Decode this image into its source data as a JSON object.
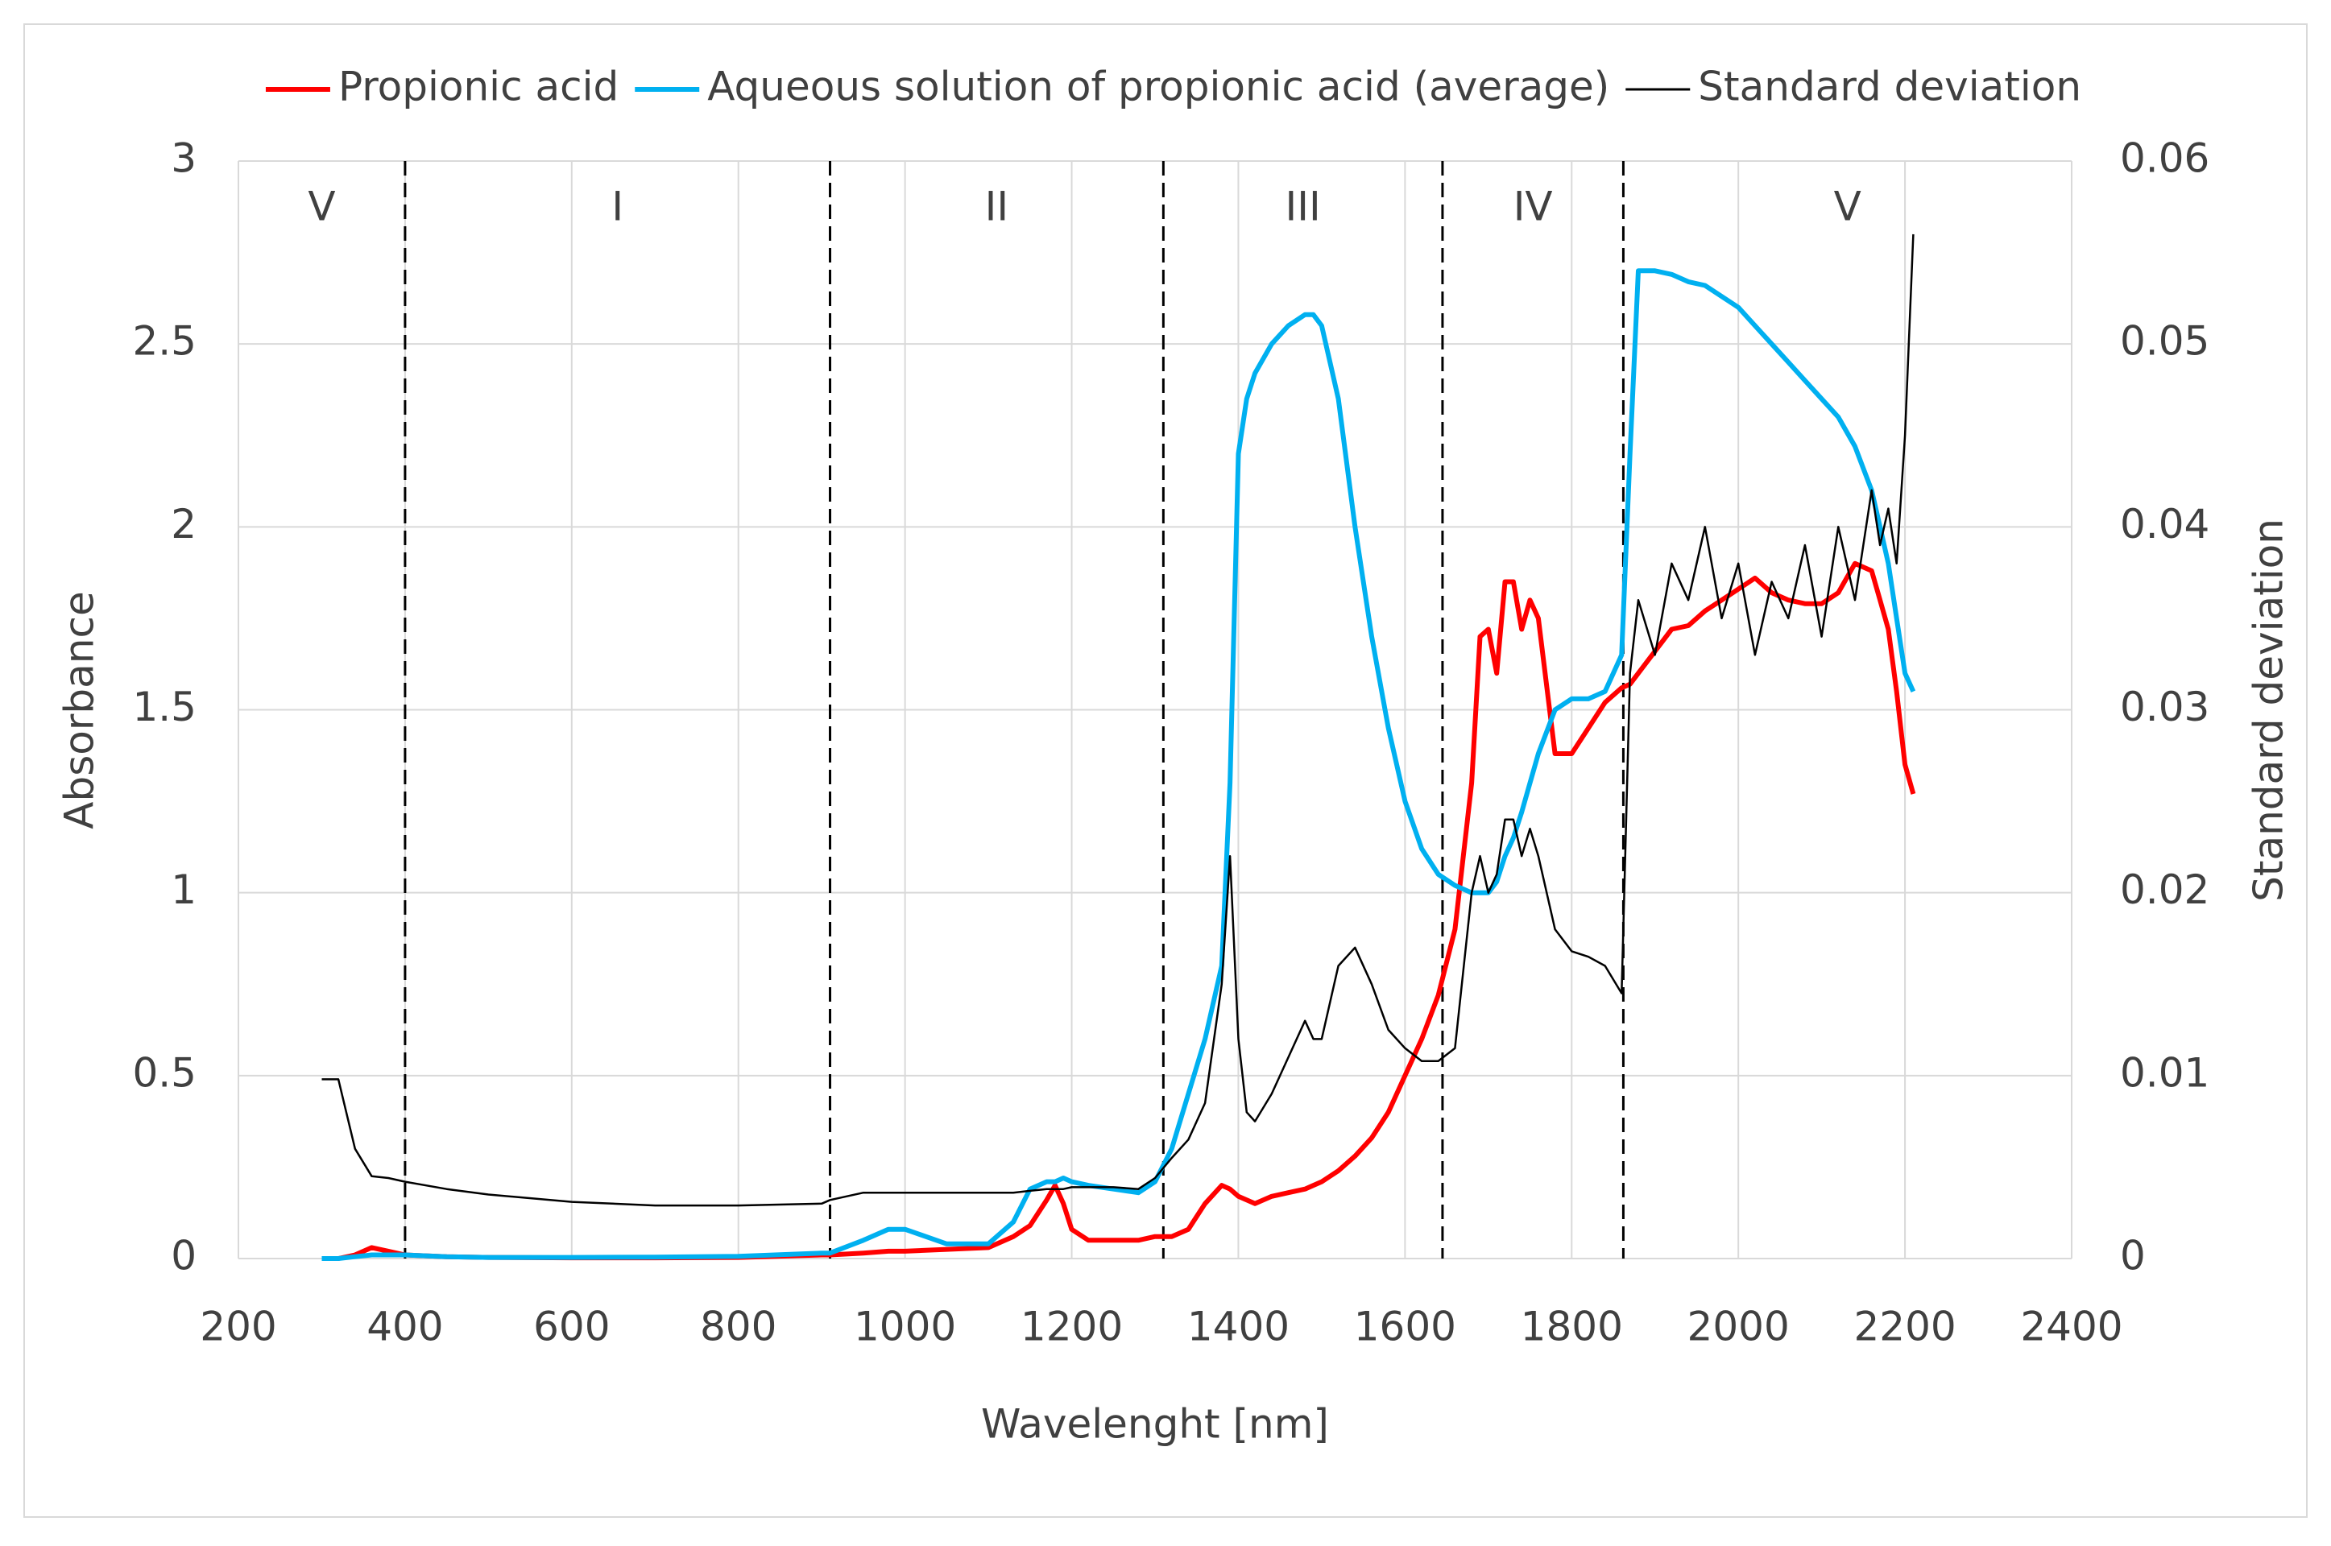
{
  "chart_data": {
    "type": "line",
    "x_label": "Wavelenght [nm]",
    "y_label": "Absorbance",
    "y2_label": "Standard deviation",
    "xlim": [
      200,
      2400
    ],
    "xticks": [
      200,
      400,
      600,
      800,
      1000,
      1200,
      1400,
      1600,
      1800,
      2000,
      2200,
      2400
    ],
    "ylim": [
      0,
      3
    ],
    "yticks": [
      0,
      0.5,
      1,
      1.5,
      2,
      2.5,
      3
    ],
    "y2lim": [
      0,
      0.06
    ],
    "y2ticks": [
      0,
      0.01,
      0.02,
      0.03,
      0.04,
      0.05,
      0.06
    ],
    "grid": true,
    "legend": "top",
    "boundaries": [
      400,
      910,
      1310,
      1645,
      1862
    ],
    "regions": [
      "V",
      "I",
      "II",
      "III",
      "IV",
      "V"
    ],
    "x": [
      300,
      320,
      340,
      360,
      380,
      400,
      450,
      500,
      600,
      700,
      800,
      900,
      910,
      950,
      980,
      1000,
      1050,
      1100,
      1130,
      1150,
      1170,
      1180,
      1190,
      1200,
      1220,
      1250,
      1280,
      1300,
      1320,
      1340,
      1360,
      1380,
      1390,
      1400,
      1410,
      1420,
      1440,
      1460,
      1480,
      1490,
      1500,
      1520,
      1540,
      1560,
      1580,
      1600,
      1620,
      1640,
      1660,
      1680,
      1690,
      1700,
      1710,
      1720,
      1730,
      1740,
      1750,
      1760,
      1780,
      1800,
      1820,
      1840,
      1860,
      1870,
      1880,
      1900,
      1920,
      1940,
      1960,
      1980,
      2000,
      2020,
      2040,
      2060,
      2080,
      2100,
      2120,
      2140,
      2160,
      2170,
      2180,
      2190,
      2200,
      2210
    ],
    "series": [
      {
        "name": "Propionic acid",
        "color": "#ff0000",
        "values": [
          0,
          0,
          0.01,
          0.03,
          0.02,
          0.01,
          0.005,
          0.003,
          0.002,
          0.002,
          0.003,
          0.01,
          0.01,
          0.015,
          0.02,
          0.02,
          0.025,
          0.03,
          0.06,
          0.09,
          0.16,
          0.2,
          0.15,
          0.08,
          0.05,
          0.05,
          0.05,
          0.06,
          0.06,
          0.08,
          0.15,
          0.2,
          0.19,
          0.17,
          0.16,
          0.15,
          0.17,
          0.18,
          0.19,
          0.2,
          0.21,
          0.24,
          0.28,
          0.33,
          0.4,
          0.5,
          0.6,
          0.72,
          0.9,
          1.3,
          1.7,
          1.72,
          1.6,
          1.85,
          1.85,
          1.72,
          1.8,
          1.75,
          1.38,
          1.38,
          1.45,
          1.52,
          1.56,
          1.57,
          1.6,
          1.66,
          1.72,
          1.73,
          1.77,
          1.8,
          1.83,
          1.86,
          1.82,
          1.8,
          1.79,
          1.79,
          1.82,
          1.9,
          1.88,
          1.8,
          1.72,
          1.55,
          1.35,
          1.27
        ]
      },
      {
        "name": "Aqueous solution of propionic acid (average)",
        "color": "#00b0f0",
        "values": [
          0,
          0,
          0.005,
          0.01,
          0.01,
          0.01,
          0.005,
          0.003,
          0.003,
          0.004,
          0.006,
          0.015,
          0.015,
          0.05,
          0.08,
          0.08,
          0.04,
          0.04,
          0.1,
          0.19,
          0.21,
          0.21,
          0.22,
          0.21,
          0.2,
          0.19,
          0.18,
          0.21,
          0.3,
          0.45,
          0.6,
          0.8,
          1.3,
          2.2,
          2.35,
          2.42,
          2.5,
          2.55,
          2.58,
          2.58,
          2.55,
          2.35,
          2.0,
          1.7,
          1.45,
          1.25,
          1.12,
          1.05,
          1.02,
          1.0,
          1.0,
          1.0,
          1.03,
          1.1,
          1.15,
          1.22,
          1.3,
          1.38,
          1.5,
          1.53,
          1.53,
          1.55,
          1.65,
          2.2,
          2.7,
          2.7,
          2.69,
          2.67,
          2.66,
          2.63,
          2.6,
          2.55,
          2.5,
          2.45,
          2.4,
          2.35,
          2.3,
          2.22,
          2.1,
          2.0,
          1.9,
          1.75,
          1.6,
          1.55
        ]
      },
      {
        "name": "Standard deviation",
        "color": "#000000",
        "axis": "y2",
        "values": [
          0.0098,
          0.0098,
          0.006,
          0.0045,
          0.0044,
          0.0042,
          0.0038,
          0.0035,
          0.0031,
          0.0029,
          0.0029,
          0.003,
          0.0032,
          0.0036,
          0.0036,
          0.0036,
          0.0036,
          0.0036,
          0.0036,
          0.0037,
          0.0038,
          0.0038,
          0.0038,
          0.0039,
          0.0039,
          0.0039,
          0.0038,
          0.0044,
          0.0055,
          0.0065,
          0.0085,
          0.015,
          0.022,
          0.012,
          0.008,
          0.0075,
          0.009,
          0.011,
          0.013,
          0.012,
          0.012,
          0.016,
          0.017,
          0.015,
          0.0125,
          0.0115,
          0.0108,
          0.0108,
          0.0115,
          0.02,
          0.022,
          0.02,
          0.021,
          0.024,
          0.024,
          0.022,
          0.0235,
          0.022,
          0.018,
          0.0168,
          0.0165,
          0.016,
          0.0145,
          0.032,
          0.036,
          0.033,
          0.038,
          0.036,
          0.04,
          0.035,
          0.038,
          0.033,
          0.037,
          0.035,
          0.039,
          0.034,
          0.04,
          0.036,
          0.042,
          0.039,
          0.041,
          0.038,
          0.045,
          0.056
        ]
      }
    ]
  }
}
